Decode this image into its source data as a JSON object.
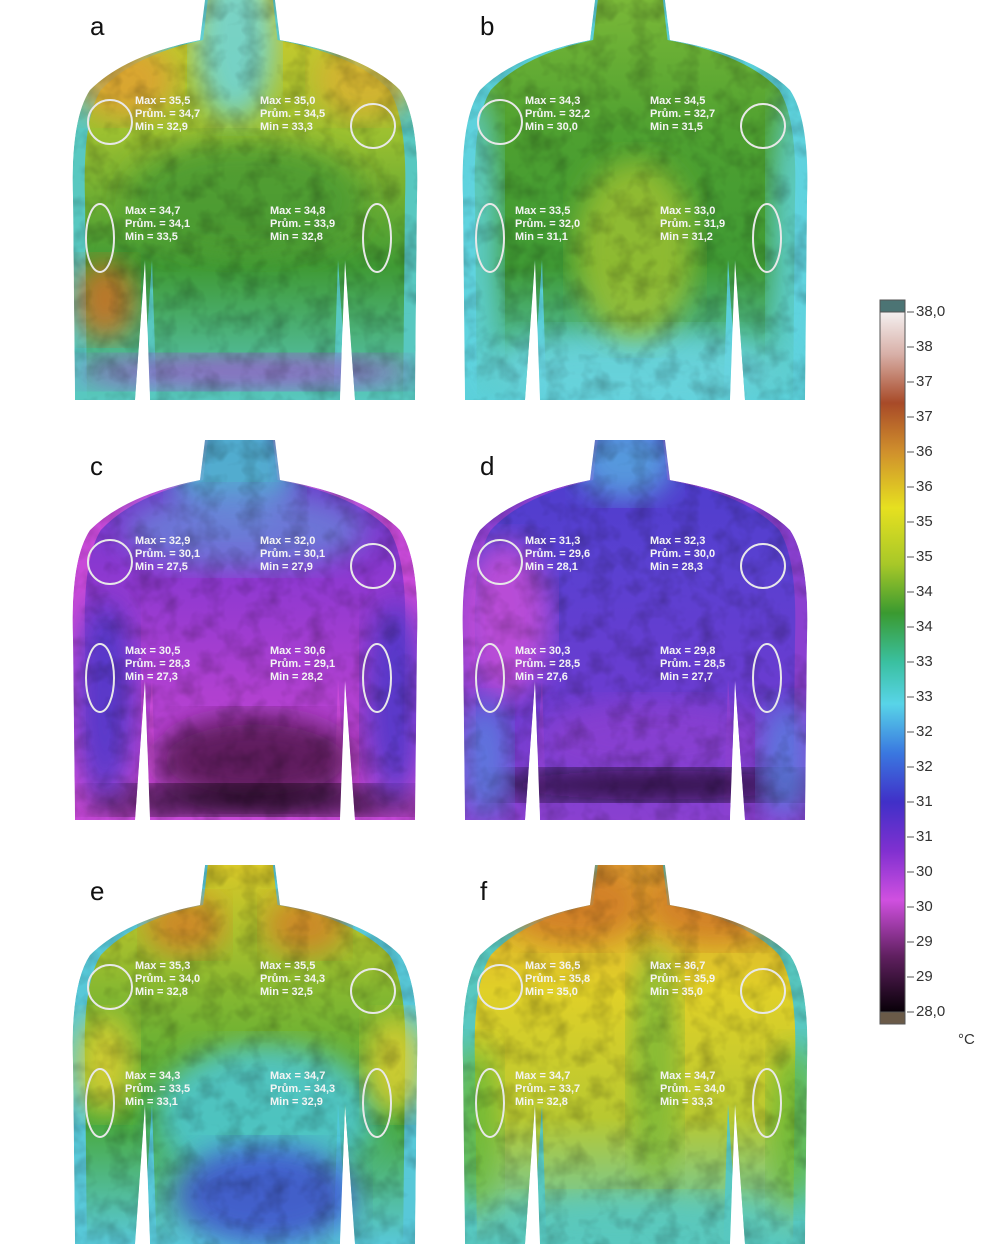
{
  "panels": [
    {
      "label": "a",
      "regions": [
        {
          "lines": [
            "Max = 35,5",
            "Prům. = 34,7",
            "Min = 32,9"
          ]
        },
        {
          "lines": [
            "Max = 35,0",
            "Prům. = 34,5",
            "Min = 33,3"
          ]
        },
        {
          "lines": [
            "Max = 34,7",
            "Prům. = 34,1",
            "Min = 33,5"
          ]
        },
        {
          "lines": [
            "Max = 34,8",
            "Prům. = 33,9",
            "Min = 32,8"
          ]
        }
      ]
    },
    {
      "label": "b",
      "regions": [
        {
          "lines": [
            "Max = 34,3",
            "Prům. = 32,2",
            "Min = 30,0"
          ]
        },
        {
          "lines": [
            "Max = 34,5",
            "Prům. = 32,7",
            "Min = 31,5"
          ]
        },
        {
          "lines": [
            "Max = 33,5",
            "Prům. = 32,0",
            "Min = 31,1"
          ]
        },
        {
          "lines": [
            "Max = 33,0",
            "Prům. = 31,9",
            "Min = 31,2"
          ]
        }
      ]
    },
    {
      "label": "c",
      "regions": [
        {
          "lines": [
            "Max = 32,9",
            "Prům. = 30,1",
            "Min = 27,5"
          ]
        },
        {
          "lines": [
            "Max = 32,0",
            "Prům. = 30,1",
            "Min = 27,9"
          ]
        },
        {
          "lines": [
            "Max = 30,5",
            "Prům. = 28,3",
            "Min = 27,3"
          ]
        },
        {
          "lines": [
            "Max = 30,6",
            "Prům. = 29,1",
            "Min = 28,2"
          ]
        }
      ]
    },
    {
      "label": "d",
      "regions": [
        {
          "lines": [
            "Max = 31,3",
            "Prům. = 29,6",
            "Min = 28,1"
          ]
        },
        {
          "lines": [
            "Max = 32,3",
            "Prům. = 30,0",
            "Min = 28,3"
          ]
        },
        {
          "lines": [
            "Max = 30,3",
            "Prům. = 28,5",
            "Min = 27,6"
          ]
        },
        {
          "lines": [
            "Max = 29,8",
            "Prům. = 28,5",
            "Min = 27,7"
          ]
        }
      ]
    },
    {
      "label": "e",
      "regions": [
        {
          "lines": [
            "Max = 35,3",
            "Prům. = 34,0",
            "Min = 32,8"
          ]
        },
        {
          "lines": [
            "Max = 35,5",
            "Prům. = 34,3",
            "Min = 32,5"
          ]
        },
        {
          "lines": [
            "Max = 34,3",
            "Prům. = 33,5",
            "Min = 33,1"
          ]
        },
        {
          "lines": [
            "Max = 34,7",
            "Prům. = 34,3",
            "Min = 32,9"
          ]
        }
      ]
    },
    {
      "label": "f",
      "regions": [
        {
          "lines": [
            "Max = 36,5",
            "Prům. = 35,8",
            "Min = 35,0"
          ]
        },
        {
          "lines": [
            "Max = 36,7",
            "Prům. = 35,9",
            "Min = 35,0"
          ]
        },
        {
          "lines": [
            "Max = 34,7",
            "Prům. = 33,7",
            "Min = 32,8"
          ]
        },
        {
          "lines": [
            "Max = 34,7",
            "Prům. = 34,0",
            "Min = 33,3"
          ]
        }
      ]
    }
  ],
  "colorbar": {
    "ticks": [
      "38,0",
      "38",
      "37",
      "37",
      "36",
      "36",
      "35",
      "35",
      "34",
      "34",
      "33",
      "33",
      "32",
      "32",
      "31",
      "31",
      "30",
      "30",
      "29",
      "29",
      "28,0"
    ],
    "unit": "°C"
  }
}
